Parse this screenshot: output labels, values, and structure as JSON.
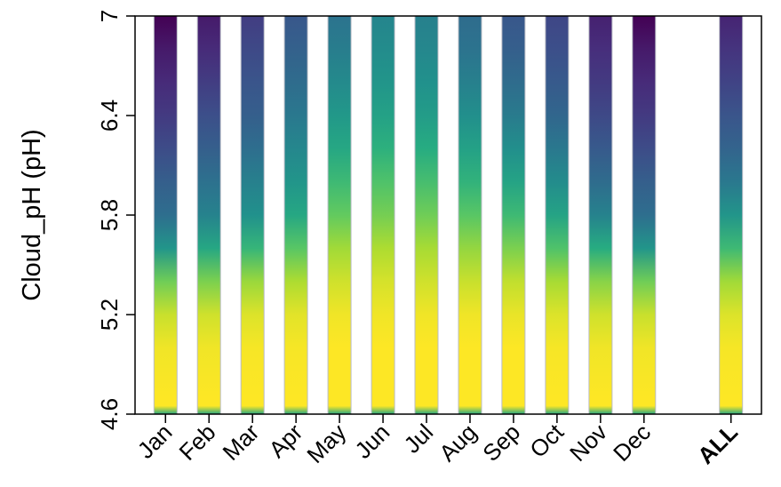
{
  "chart_data": {
    "type": "heatmap",
    "title": "",
    "xlabel": "",
    "ylabel": "Cloud_pH  (pH)",
    "ylim": [
      4.6,
      7
    ],
    "yticks": [
      4.6,
      5.2,
      5.8,
      6.4,
      7
    ],
    "ytick_labels": [
      "4.6",
      "5.2",
      "5.8",
      "6.4",
      "7"
    ],
    "grid": false,
    "colormap": "viridis",
    "categories": [
      "Jan",
      "Feb",
      "Mar",
      "Apr",
      "May",
      "Jun",
      "Jul",
      "Aug",
      "Sep",
      "Oct",
      "Nov",
      "Dec",
      "ALL"
    ],
    "bold_categories": [
      "ALL"
    ],
    "category_positions": [
      1,
      2,
      3,
      4,
      5,
      6,
      7,
      8,
      9,
      10,
      11,
      12,
      14
    ],
    "xlim": [
      0.3,
      14.7
    ],
    "value_axis": [
      4.6,
      4.65,
      4.7,
      5.0,
      5.2,
      5.4,
      5.6,
      5.8,
      6.0,
      6.2,
      6.4,
      6.6,
      6.8,
      7.0
    ],
    "intensity": [
      [
        0.6,
        1.0,
        1.0,
        0.98,
        0.92,
        0.78,
        0.52,
        0.36,
        0.3,
        0.23,
        0.17,
        0.12,
        0.07,
        0.0
      ],
      [
        0.6,
        1.0,
        1.0,
        0.98,
        0.93,
        0.8,
        0.6,
        0.44,
        0.37,
        0.3,
        0.24,
        0.18,
        0.12,
        0.07
      ],
      [
        0.6,
        1.0,
        1.0,
        0.99,
        0.95,
        0.85,
        0.66,
        0.5,
        0.43,
        0.36,
        0.3,
        0.26,
        0.22,
        0.18
      ],
      [
        0.6,
        1.0,
        1.0,
        0.99,
        0.96,
        0.88,
        0.74,
        0.6,
        0.52,
        0.46,
        0.4,
        0.35,
        0.31,
        0.27
      ],
      [
        0.6,
        1.0,
        1.0,
        1.0,
        0.98,
        0.93,
        0.86,
        0.76,
        0.68,
        0.6,
        0.53,
        0.47,
        0.42,
        0.38
      ],
      [
        0.6,
        1.0,
        1.0,
        1.0,
        0.98,
        0.94,
        0.88,
        0.79,
        0.72,
        0.64,
        0.57,
        0.52,
        0.48,
        0.45
      ],
      [
        0.6,
        1.0,
        1.0,
        1.0,
        0.98,
        0.93,
        0.87,
        0.78,
        0.7,
        0.62,
        0.55,
        0.5,
        0.46,
        0.43
      ],
      [
        0.6,
        1.0,
        1.0,
        1.0,
        0.98,
        0.92,
        0.84,
        0.74,
        0.65,
        0.57,
        0.49,
        0.43,
        0.38,
        0.35
      ],
      [
        0.6,
        1.0,
        1.0,
        1.0,
        0.97,
        0.91,
        0.8,
        0.68,
        0.58,
        0.49,
        0.41,
        0.35,
        0.3,
        0.27
      ],
      [
        0.6,
        1.0,
        1.0,
        0.99,
        0.95,
        0.87,
        0.72,
        0.58,
        0.48,
        0.4,
        0.33,
        0.28,
        0.24,
        0.21
      ],
      [
        0.6,
        1.0,
        1.0,
        0.98,
        0.93,
        0.82,
        0.62,
        0.44,
        0.35,
        0.28,
        0.22,
        0.17,
        0.13,
        0.09
      ],
      [
        0.6,
        1.0,
        1.0,
        0.98,
        0.92,
        0.78,
        0.52,
        0.36,
        0.3,
        0.23,
        0.17,
        0.12,
        0.07,
        0.0
      ],
      [
        0.6,
        1.0,
        1.0,
        0.99,
        0.95,
        0.86,
        0.68,
        0.52,
        0.4,
        0.32,
        0.26,
        0.2,
        0.15,
        0.1
      ]
    ]
  }
}
